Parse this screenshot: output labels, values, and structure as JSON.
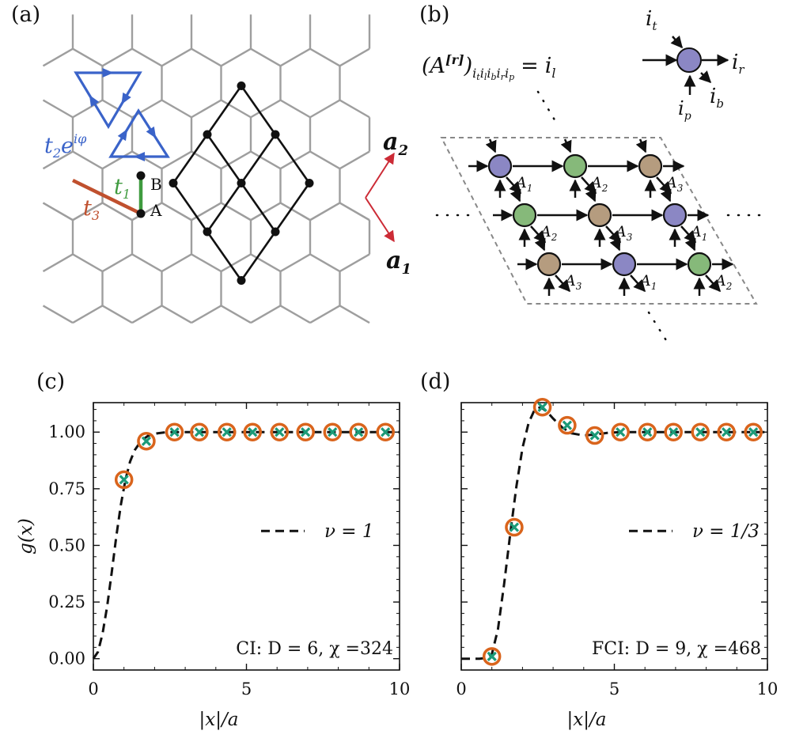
{
  "figure": {
    "panel_labels": {
      "a": "(a)",
      "b": "(b)",
      "c": "(c)",
      "d": "(d)"
    },
    "colors": {
      "honeycomb": "#9e9e9e",
      "kagome": "#111111",
      "t1": "#3f9b3f",
      "t2": "#3a63c9",
      "t3": "#c0502e",
      "lattice_vector": "#cc2b36",
      "tensor_A1": "#8b87c4",
      "tensor_A2": "#86b97a",
      "tensor_A3": "#b59c7f",
      "marker_circle": "#d9641c",
      "marker_cross": "#1c9a78"
    }
  },
  "panel_a": {
    "t2_label": "t₂e^{iφ}",
    "t2_base": "t",
    "t2_sub": "2",
    "t2_exp": "e",
    "t2_sup": "iφ",
    "t1_base": "t",
    "t1_sub": "1",
    "t3_base": "t",
    "t3_sub": "3",
    "site_A": "A",
    "site_B": "B",
    "vec_a1_base": "a",
    "vec_a1_sub": "1",
    "vec_a2_base": "a",
    "vec_a2_sub": "2"
  },
  "panel_b": {
    "equation_lhs": "(A",
    "equation_sup": "[r]",
    "equation_rhs": ")",
    "equation_indices": "i",
    "index_t": "t",
    "index_l": "l",
    "index_b": "b",
    "index_r": "r",
    "index_p": "p",
    "equals": "=",
    "leg_it": "i",
    "leg_il": "i",
    "leg_ir": "i",
    "leg_ib": "i",
    "leg_ip": "i",
    "tensor_labels": [
      "A",
      "A",
      "A",
      "A",
      "A",
      "A",
      "A",
      "A",
      "A"
    ],
    "tensor_subs": [
      "1",
      "2",
      "3",
      "2",
      "3",
      "1",
      "3",
      "1",
      "2"
    ]
  },
  "chart_data": [
    {
      "type": "line",
      "panel": "(c)",
      "xlabel": "|x|/a",
      "ylabel": "g(x)",
      "xlim": [
        0,
        10
      ],
      "ylim": [
        -0.05,
        1.13
      ],
      "xticks": [
        "0",
        "5",
        "10"
      ],
      "yticks": [
        "0.00",
        "0.25",
        "0.50",
        "0.75",
        "1.00"
      ],
      "legend": "ν = 1",
      "legend_position": "center-right",
      "annotation": "CI: D = 6, χ =324",
      "series": [
        {
          "style": "dashed-curve",
          "x": [
            0.0,
            0.15,
            0.3,
            0.45,
            0.6,
            0.75,
            0.9,
            1.05,
            1.2,
            1.35,
            1.5,
            1.65,
            1.8,
            1.95,
            2.1,
            2.3,
            2.5,
            2.7,
            3.0,
            3.5,
            4.0,
            5.0,
            6.0,
            7.0,
            8.0,
            9.0,
            10.0
          ],
          "y": [
            0.0,
            0.03,
            0.11,
            0.23,
            0.38,
            0.54,
            0.68,
            0.79,
            0.87,
            0.92,
            0.95,
            0.97,
            0.985,
            0.99,
            0.995,
            0.998,
            1.0,
            1.0,
            1.0,
            1.0,
            1.0,
            1.0,
            1.0,
            1.0,
            1.0,
            1.0,
            1.0
          ]
        },
        {
          "style": "circles",
          "x": [
            1.0,
            1.73,
            2.65,
            3.46,
            4.36,
            5.2,
            6.08,
            6.93,
            7.81,
            8.66,
            9.54
          ],
          "y": [
            0.79,
            0.96,
            1.0,
            1.0,
            1.0,
            1.0,
            1.0,
            1.0,
            1.0,
            1.0,
            1.0
          ]
        },
        {
          "style": "crosses",
          "x": [
            1.0,
            1.73,
            2.65,
            3.46,
            4.36,
            5.2,
            6.08,
            6.93,
            7.81,
            8.66,
            9.54
          ],
          "y": [
            0.79,
            0.96,
            1.0,
            1.0,
            1.0,
            1.0,
            1.0,
            1.0,
            1.0,
            1.0,
            1.0
          ]
        }
      ]
    },
    {
      "type": "line",
      "panel": "(d)",
      "xlabel": "|x|/a",
      "ylabel": "",
      "xlim": [
        0,
        10
      ],
      "ylim": [
        -0.05,
        1.13
      ],
      "xticks": [
        "0",
        "5",
        "10"
      ],
      "yticks": [],
      "legend": "ν = 1/3",
      "legend_position": "center-right",
      "annotation": "FCI: D = 9, χ =468",
      "series": [
        {
          "style": "dashed-curve",
          "x": [
            0.0,
            0.3,
            0.6,
            0.8,
            1.0,
            1.2,
            1.4,
            1.6,
            1.8,
            2.0,
            2.2,
            2.4,
            2.6,
            2.8,
            3.0,
            3.3,
            3.6,
            4.0,
            4.4,
            4.8,
            5.2,
            6.0,
            7.0,
            8.0,
            9.0,
            10.0
          ],
          "y": [
            0.0,
            0.0,
            0.0,
            0.003,
            0.02,
            0.13,
            0.33,
            0.55,
            0.76,
            0.93,
            1.04,
            1.1,
            1.11,
            1.09,
            1.06,
            1.02,
            0.995,
            0.985,
            0.99,
            0.997,
            1.0,
            1.0,
            1.0,
            1.0,
            1.0,
            1.0
          ]
        },
        {
          "style": "circles",
          "x": [
            1.0,
            1.73,
            2.65,
            3.46,
            4.36,
            5.2,
            6.08,
            6.93,
            7.81,
            8.66,
            9.54
          ],
          "y": [
            0.01,
            0.58,
            1.11,
            1.03,
            0.985,
            1.0,
            1.0,
            1.0,
            1.0,
            1.0,
            1.0
          ]
        },
        {
          "style": "crosses",
          "x": [
            1.0,
            1.73,
            2.65,
            3.46,
            4.36,
            5.2,
            6.08,
            6.93,
            7.81,
            8.66,
            9.54
          ],
          "y": [
            0.01,
            0.58,
            1.11,
            1.03,
            0.985,
            1.0,
            1.0,
            1.0,
            1.0,
            1.0,
            1.0
          ]
        }
      ]
    }
  ]
}
